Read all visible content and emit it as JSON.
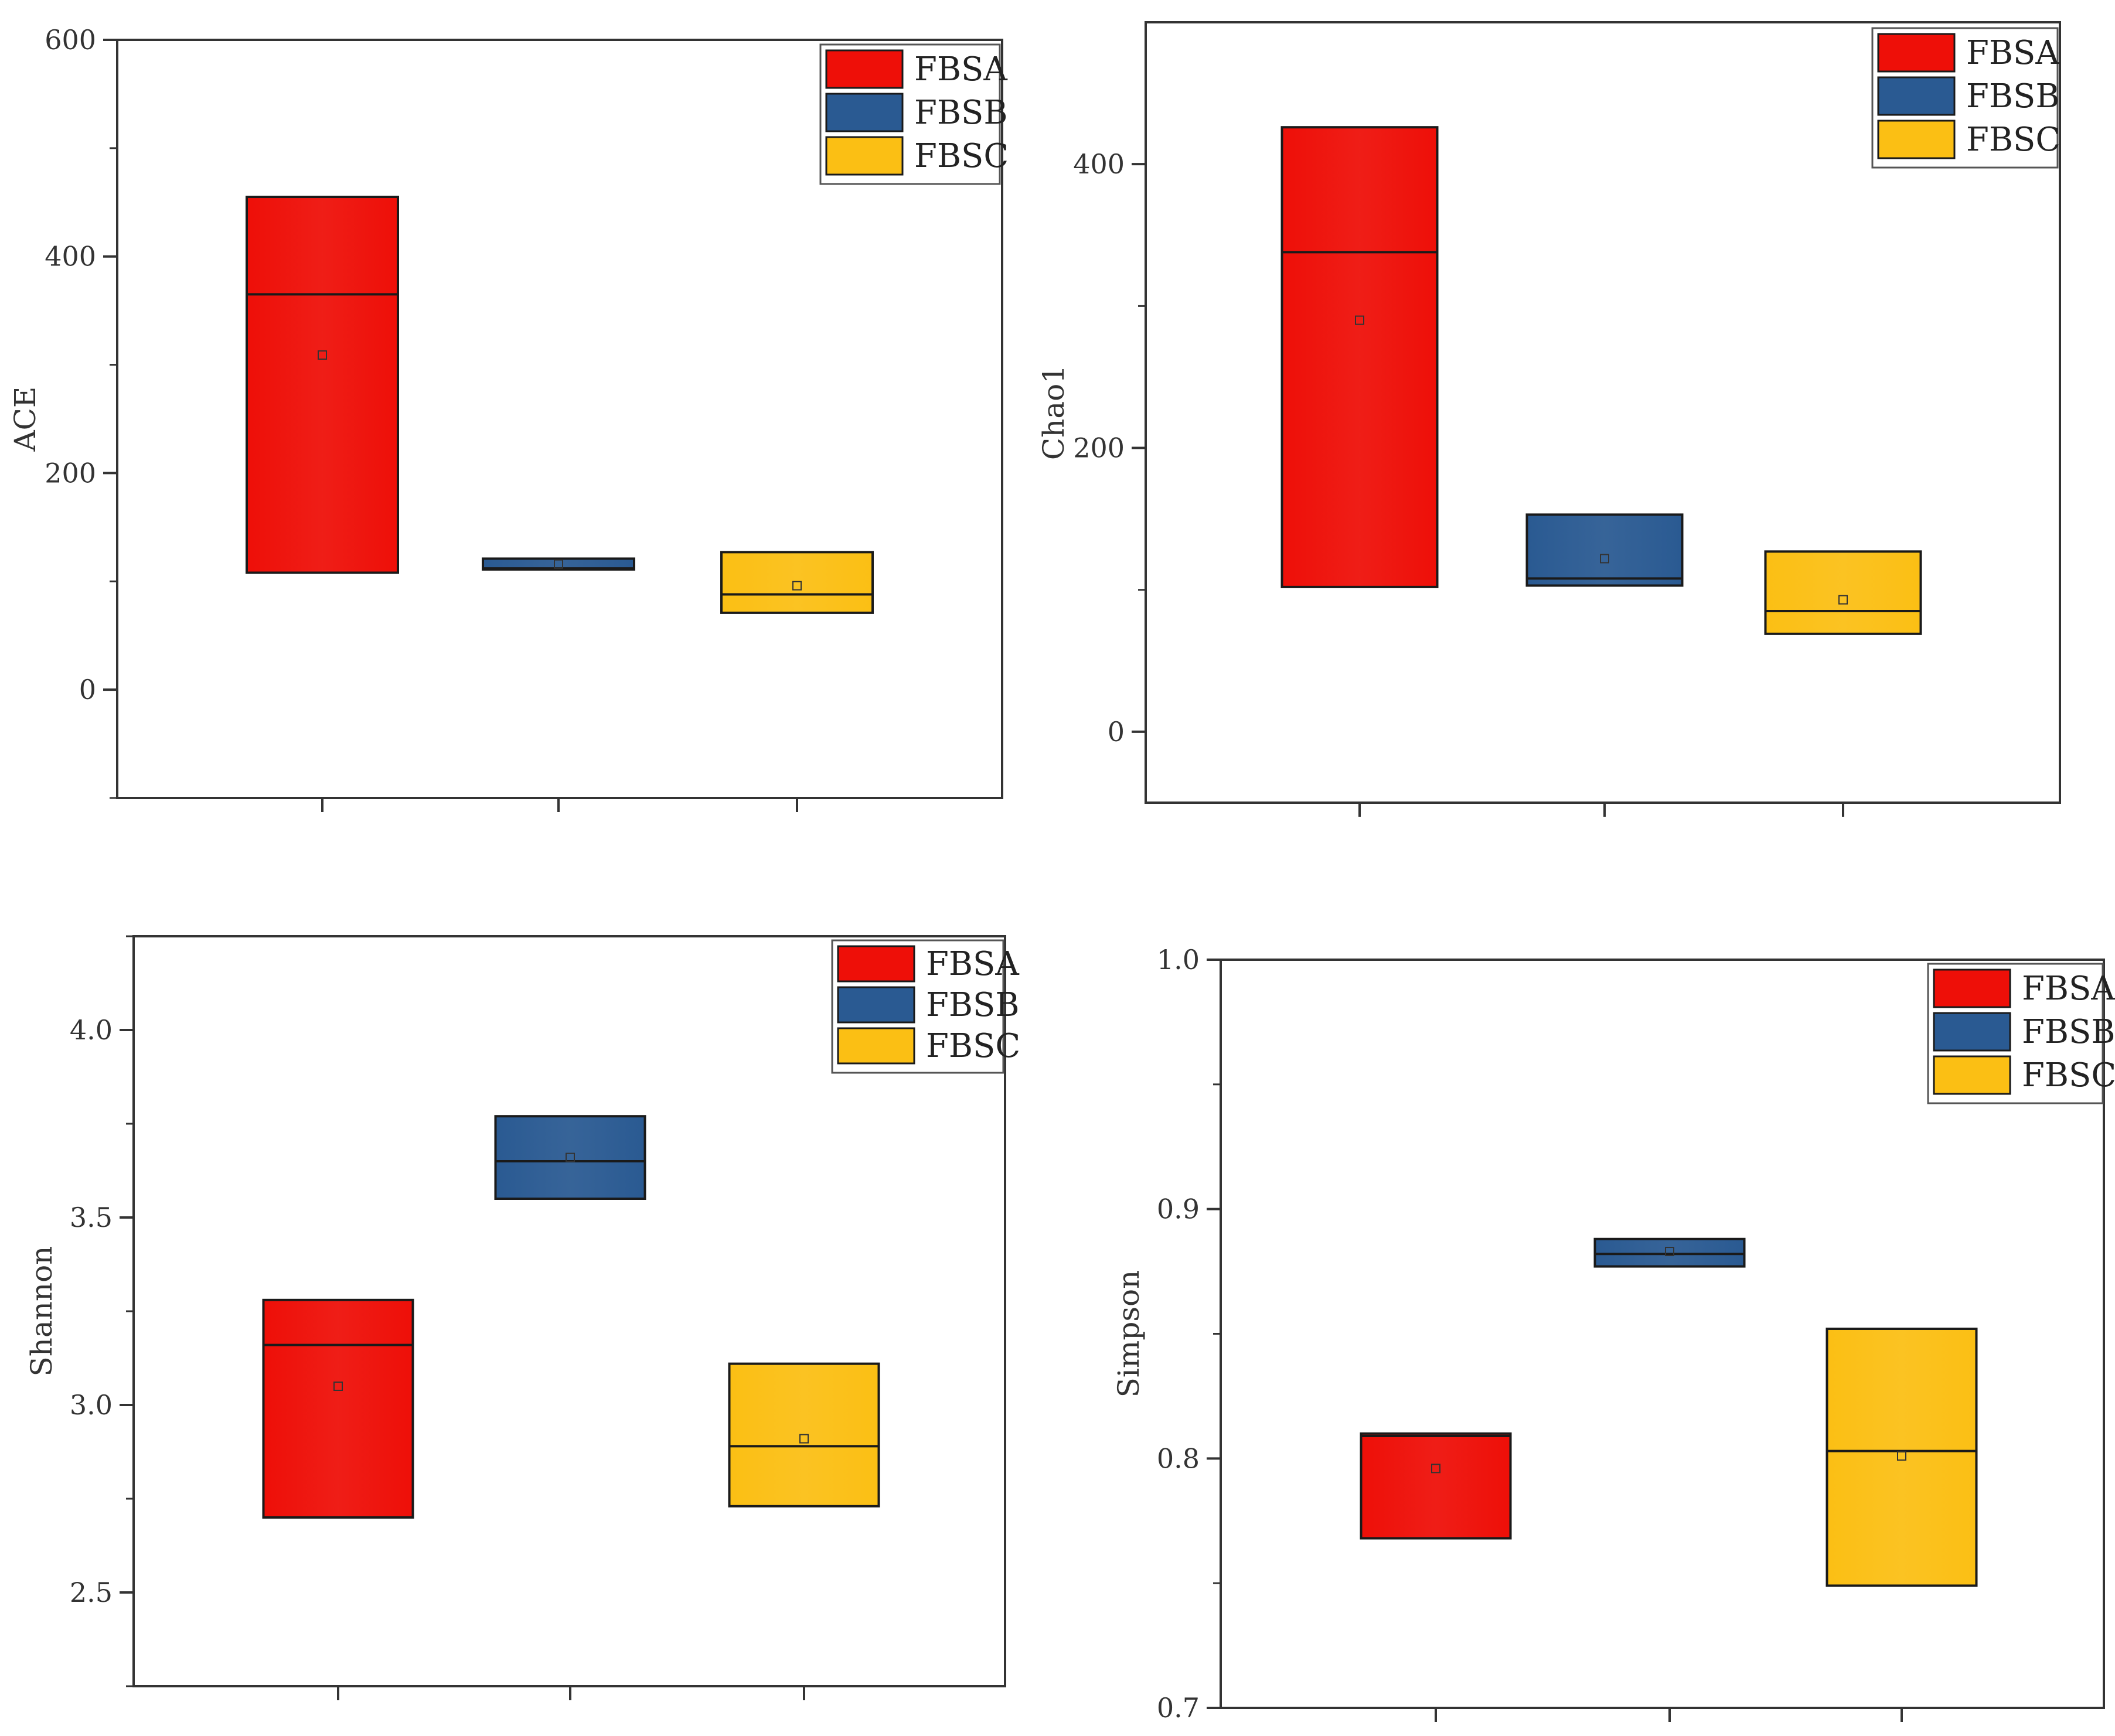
{
  "colors": {
    "FBSA": "#ee0f08",
    "FBSB": "#2a5a92",
    "FBSC": "#fbbf14",
    "axis": "#333333"
  },
  "chart_data": [
    {
      "type": "box",
      "panel": "top-left",
      "ylabel": "ACE",
      "ylim": [
        -100,
        600
      ],
      "yticks": [
        0,
        200,
        400,
        600
      ],
      "yticks_minor": [
        -100,
        100,
        300,
        500
      ],
      "legend": {
        "placement": "top-right",
        "entries": [
          "FBSA",
          "FBSB",
          "FBSC"
        ]
      },
      "boxes": [
        {
          "name": "FBSA",
          "q1": 108,
          "median": 365,
          "q3": 455,
          "mean": 309
        },
        {
          "name": "FBSB",
          "q1": 111,
          "median": 112,
          "q3": 121,
          "mean": 116
        },
        {
          "name": "FBSC",
          "q1": 71,
          "median": 88,
          "q3": 127,
          "mean": 96
        }
      ]
    },
    {
      "type": "box",
      "panel": "top-right",
      "ylabel": "Chao1",
      "ylim": [
        -50,
        500
      ],
      "yticks": [
        0,
        200,
        400
      ],
      "yticks_minor": [
        100,
        300
      ],
      "legend": {
        "placement": "top-right",
        "entries": [
          "FBSA",
          "FBSB",
          "FBSC"
        ]
      },
      "boxes": [
        {
          "name": "FBSA",
          "q1": 102,
          "median": 338,
          "q3": 426,
          "mean": 290
        },
        {
          "name": "FBSB",
          "q1": 103,
          "median": 108,
          "q3": 153,
          "mean": 122
        },
        {
          "name": "FBSC",
          "q1": 69,
          "median": 85,
          "q3": 127,
          "mean": 93
        }
      ]
    },
    {
      "type": "box",
      "panel": "bottom-left",
      "ylabel": "Shannon",
      "ylim": [
        2.25,
        4.25
      ],
      "yticks": [
        2.5,
        3.0,
        3.5,
        4.0
      ],
      "yticks_minor": [
        2.25,
        2.75,
        3.25,
        3.75,
        4.25
      ],
      "tick_format": "0.0",
      "legend": {
        "placement": "top-right",
        "entries": [
          "FBSA",
          "FBSB",
          "FBSC"
        ]
      },
      "boxes": [
        {
          "name": "FBSA",
          "q1": 2.7,
          "median": 3.16,
          "q3": 3.28,
          "mean": 3.05
        },
        {
          "name": "FBSB",
          "q1": 3.55,
          "median": 3.65,
          "q3": 3.77,
          "mean": 3.66
        },
        {
          "name": "FBSC",
          "q1": 2.73,
          "median": 2.89,
          "q3": 3.11,
          "mean": 2.91
        }
      ]
    },
    {
      "type": "box",
      "panel": "bottom-right",
      "ylabel": "Simpson",
      "ylim": [
        0.7,
        1.0
      ],
      "yticks": [
        0.7,
        0.8,
        0.9,
        1.0
      ],
      "yticks_minor": [
        0.75,
        0.85,
        0.95
      ],
      "tick_format": "0.0",
      "legend": {
        "placement": "top-right",
        "entries": [
          "FBSA",
          "FBSB",
          "FBSC"
        ]
      },
      "boxes": [
        {
          "name": "FBSA",
          "q1": 0.768,
          "median": 0.809,
          "q3": 0.81,
          "mean": 0.796
        },
        {
          "name": "FBSB",
          "q1": 0.877,
          "median": 0.882,
          "q3": 0.888,
          "mean": 0.883
        },
        {
          "name": "FBSC",
          "q1": 0.749,
          "median": 0.803,
          "q3": 0.852,
          "mean": 0.801
        }
      ]
    }
  ]
}
